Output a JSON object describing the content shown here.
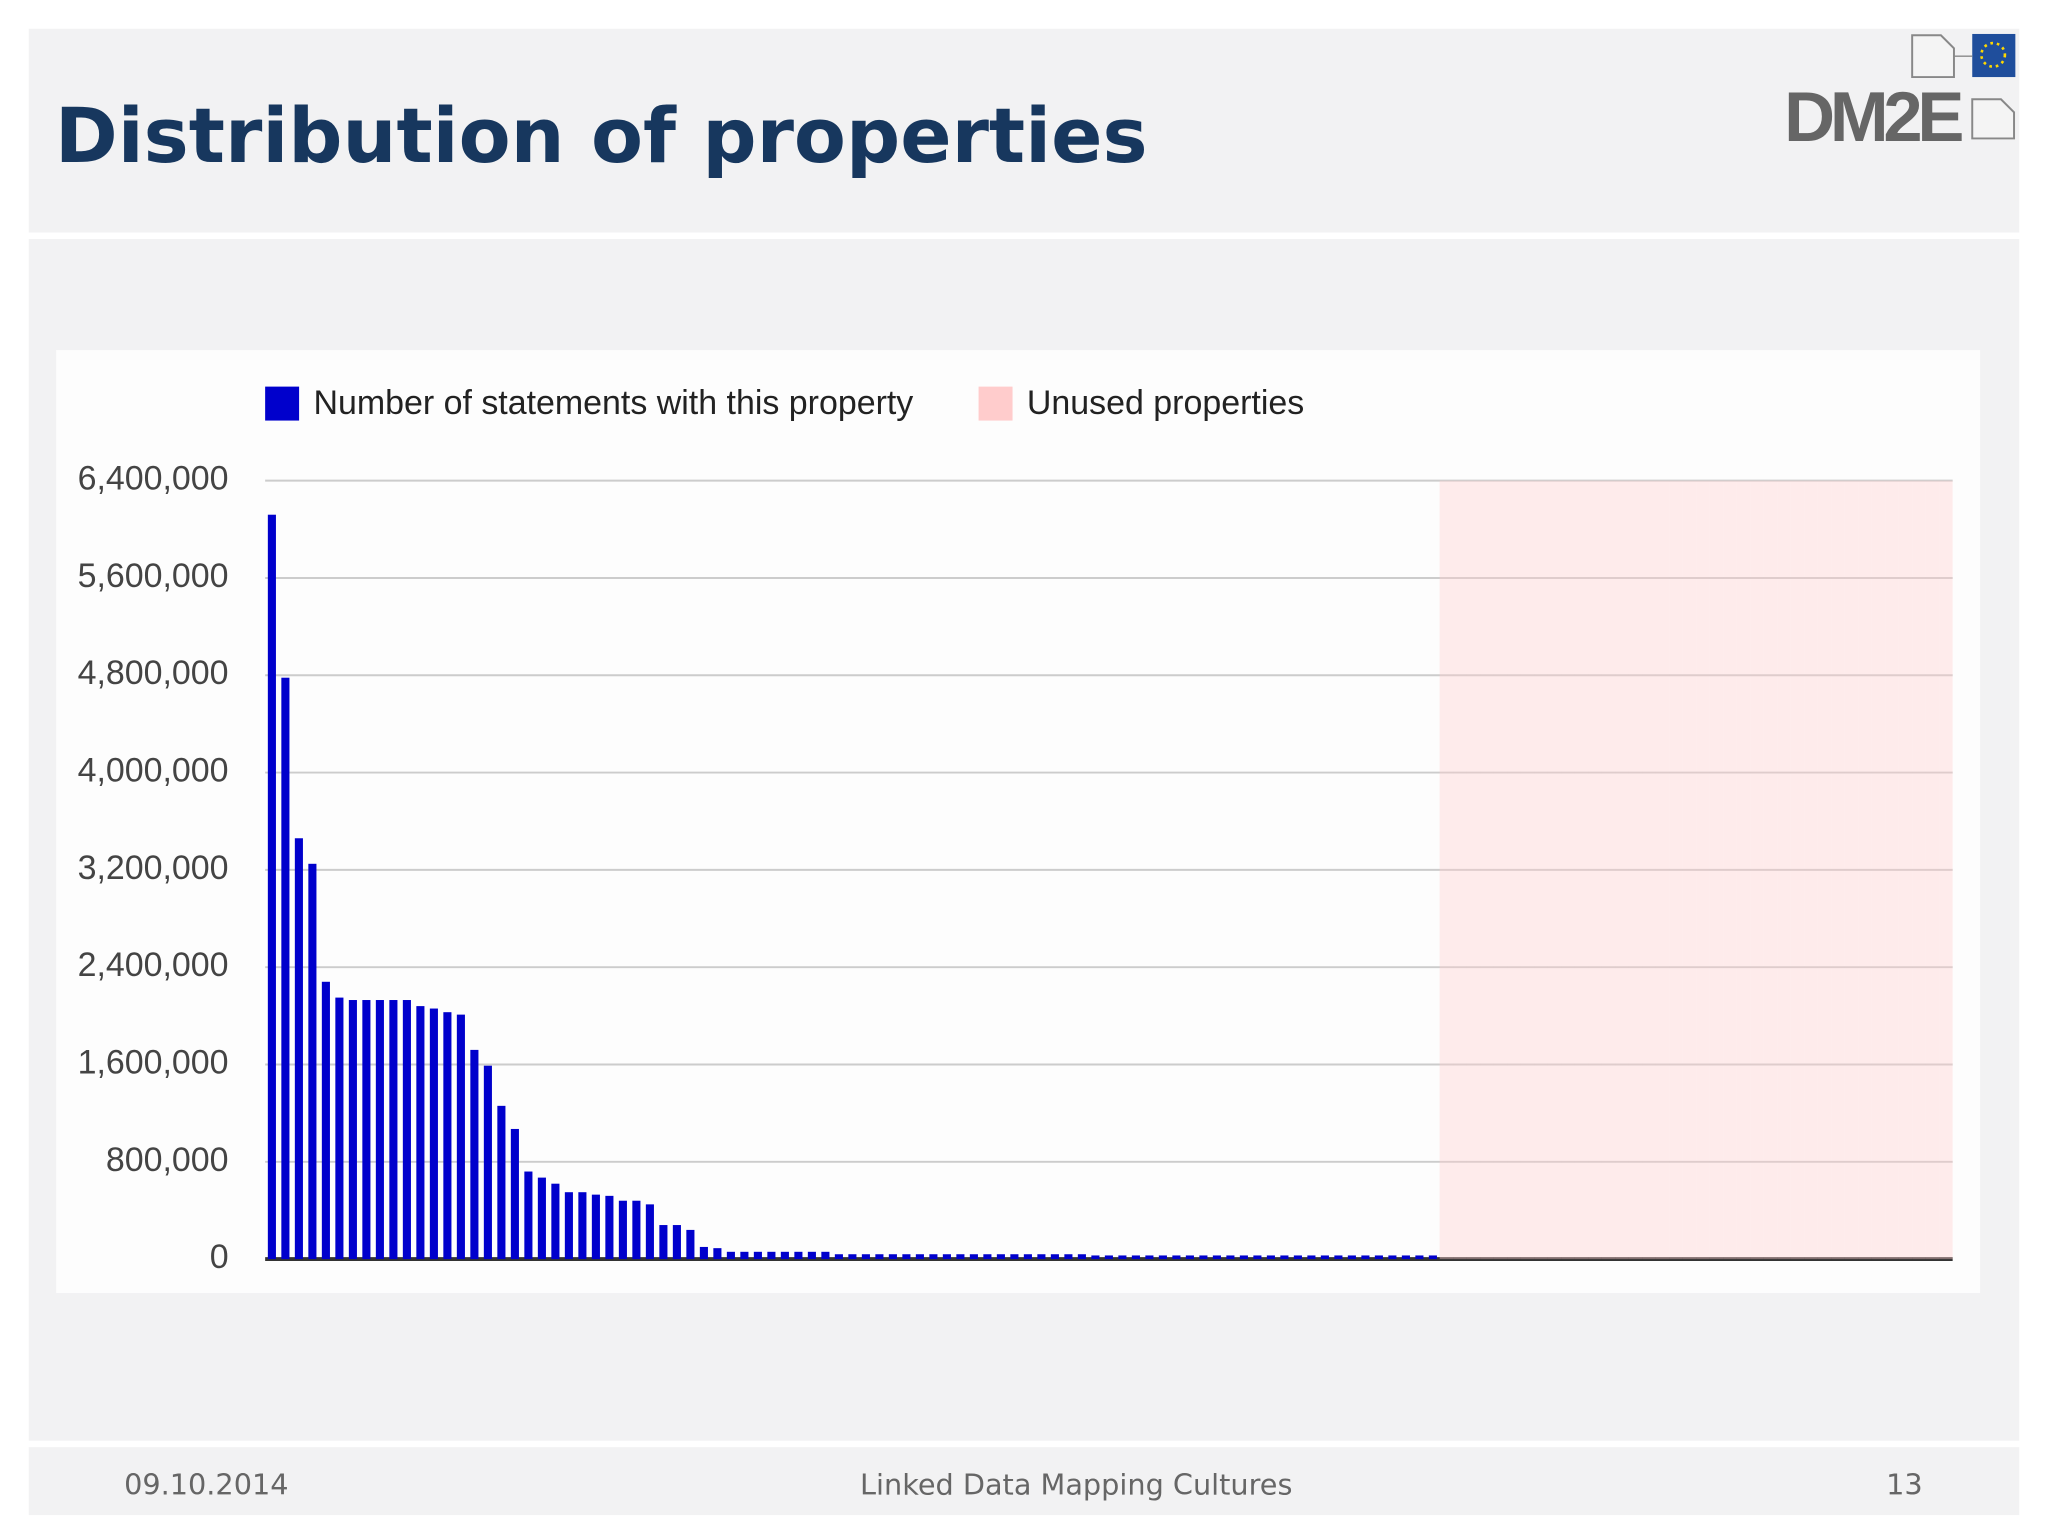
{
  "header": {
    "title": "Distribution of properties"
  },
  "logo": {
    "text": "DM2E"
  },
  "chart_data": {
    "type": "bar",
    "categories": [
      null,
      null,
      null,
      null,
      null,
      null,
      null,
      null,
      null,
      null,
      null,
      null,
      null,
      null,
      null,
      null,
      null,
      null,
      null,
      null,
      null,
      null,
      null,
      null,
      null,
      null,
      null,
      null,
      null,
      null,
      null,
      null,
      null,
      null,
      null,
      null,
      null,
      null,
      null,
      null,
      null,
      null,
      null,
      null,
      null,
      null,
      null,
      null,
      null,
      null,
      null,
      null,
      null,
      null,
      null,
      null,
      null,
      null,
      null,
      null,
      null,
      null,
      null,
      null,
      null,
      null,
      null,
      null,
      null,
      null,
      null,
      null,
      null,
      null,
      null,
      null,
      null,
      null,
      null,
      null,
      null,
      null,
      null,
      null,
      null,
      null,
      null,
      null,
      null,
      null,
      null,
      null,
      null,
      null,
      null,
      null,
      null,
      null,
      null,
      null,
      null,
      null,
      null,
      null,
      null,
      null,
      null,
      null,
      null,
      null,
      null,
      null,
      null,
      null,
      null,
      null,
      null,
      null,
      null,
      null,
      null,
      null,
      null,
      null,
      null
    ],
    "series": [
      {
        "name": "Number of statements with this property",
        "color": "#0000cc",
        "type": "bar",
        "values": [
          6120000,
          4780000,
          3460000,
          3250000,
          2280000,
          2150000,
          2130000,
          2130000,
          2130000,
          2130000,
          2130000,
          2080000,
          2060000,
          2030000,
          2010000,
          1720000,
          1590000,
          1260000,
          1070000,
          720000,
          670000,
          620000,
          550000,
          550000,
          530000,
          520000,
          480000,
          480000,
          450000,
          280000,
          280000,
          240000,
          100000,
          90000,
          60000,
          60000,
          60000,
          60000,
          60000,
          60000,
          60000,
          60000,
          40000,
          40000,
          40000,
          40000,
          40000,
          40000,
          40000,
          40000,
          40000,
          40000,
          40000,
          40000,
          40000,
          40000,
          40000,
          40000,
          40000,
          40000,
          40000,
          30000,
          30000,
          30000,
          30000,
          30000,
          30000,
          30000,
          30000,
          30000,
          30000,
          30000,
          30000,
          30000,
          30000,
          30000,
          30000,
          30000,
          30000,
          30000,
          30000,
          30000,
          30000,
          30000,
          30000,
          30000,
          30000,
          0,
          0,
          0,
          0,
          0,
          0,
          0,
          0,
          0,
          0,
          0,
          0,
          0,
          0,
          0,
          0,
          0,
          0,
          0,
          0,
          0,
          0,
          0,
          0,
          0,
          0,
          0,
          0,
          0,
          0,
          0,
          0,
          0,
          0,
          0,
          0,
          0,
          0
        ]
      },
      {
        "name": "Unused properties",
        "color": "#ffcccc",
        "type": "stepped-area",
        "values": [
          null,
          null,
          null,
          null,
          null,
          null,
          null,
          null,
          null,
          null,
          null,
          null,
          null,
          null,
          null,
          null,
          null,
          null,
          null,
          null,
          null,
          null,
          null,
          null,
          null,
          null,
          null,
          null,
          null,
          null,
          null,
          null,
          null,
          null,
          null,
          null,
          null,
          null,
          null,
          null,
          null,
          null,
          null,
          null,
          null,
          null,
          null,
          null,
          null,
          null,
          null,
          null,
          null,
          null,
          null,
          null,
          null,
          null,
          null,
          null,
          null,
          null,
          null,
          null,
          null,
          null,
          null,
          null,
          null,
          null,
          null,
          null,
          null,
          null,
          null,
          null,
          null,
          null,
          null,
          null,
          null,
          null,
          null,
          null,
          null,
          null,
          null,
          6400000,
          6400000,
          6400000,
          6400000,
          6400000,
          6400000,
          6400000,
          6400000,
          6400000,
          6400000,
          6400000,
          6400000,
          6400000,
          6400000,
          6400000,
          6400000,
          6400000,
          6400000,
          6400000,
          6400000,
          6400000,
          6400000,
          6400000,
          6400000,
          6400000,
          6400000,
          6400000,
          6400000,
          6400000,
          6400000,
          6400000,
          6400000,
          6400000,
          6400000,
          6400000,
          6400000,
          6400000,
          6400000
        ]
      }
    ],
    "ylim": [
      0,
      6400000
    ],
    "yticks": [
      0,
      {
        "value": 800000,
        "label": "800,000"
      },
      {
        "value": 1600000,
        "label": "1,600,000"
      },
      {
        "value": 2400000,
        "label": "2,400,000"
      },
      {
        "value": 3200000,
        "label": "3,200,000"
      },
      {
        "value": 4000000,
        "label": "4,000,000"
      },
      {
        "value": 4800000,
        "label": "4,800,000"
      },
      {
        "value": 5600000,
        "label": "5,600,000"
      },
      {
        "value": 6400000,
        "label": "6,400,000"
      }
    ],
    "grid": true,
    "legend": "top"
  },
  "footer": {
    "date": "09.10.2014",
    "center": "Linked Data Mapping Cultures",
    "page": "13"
  }
}
